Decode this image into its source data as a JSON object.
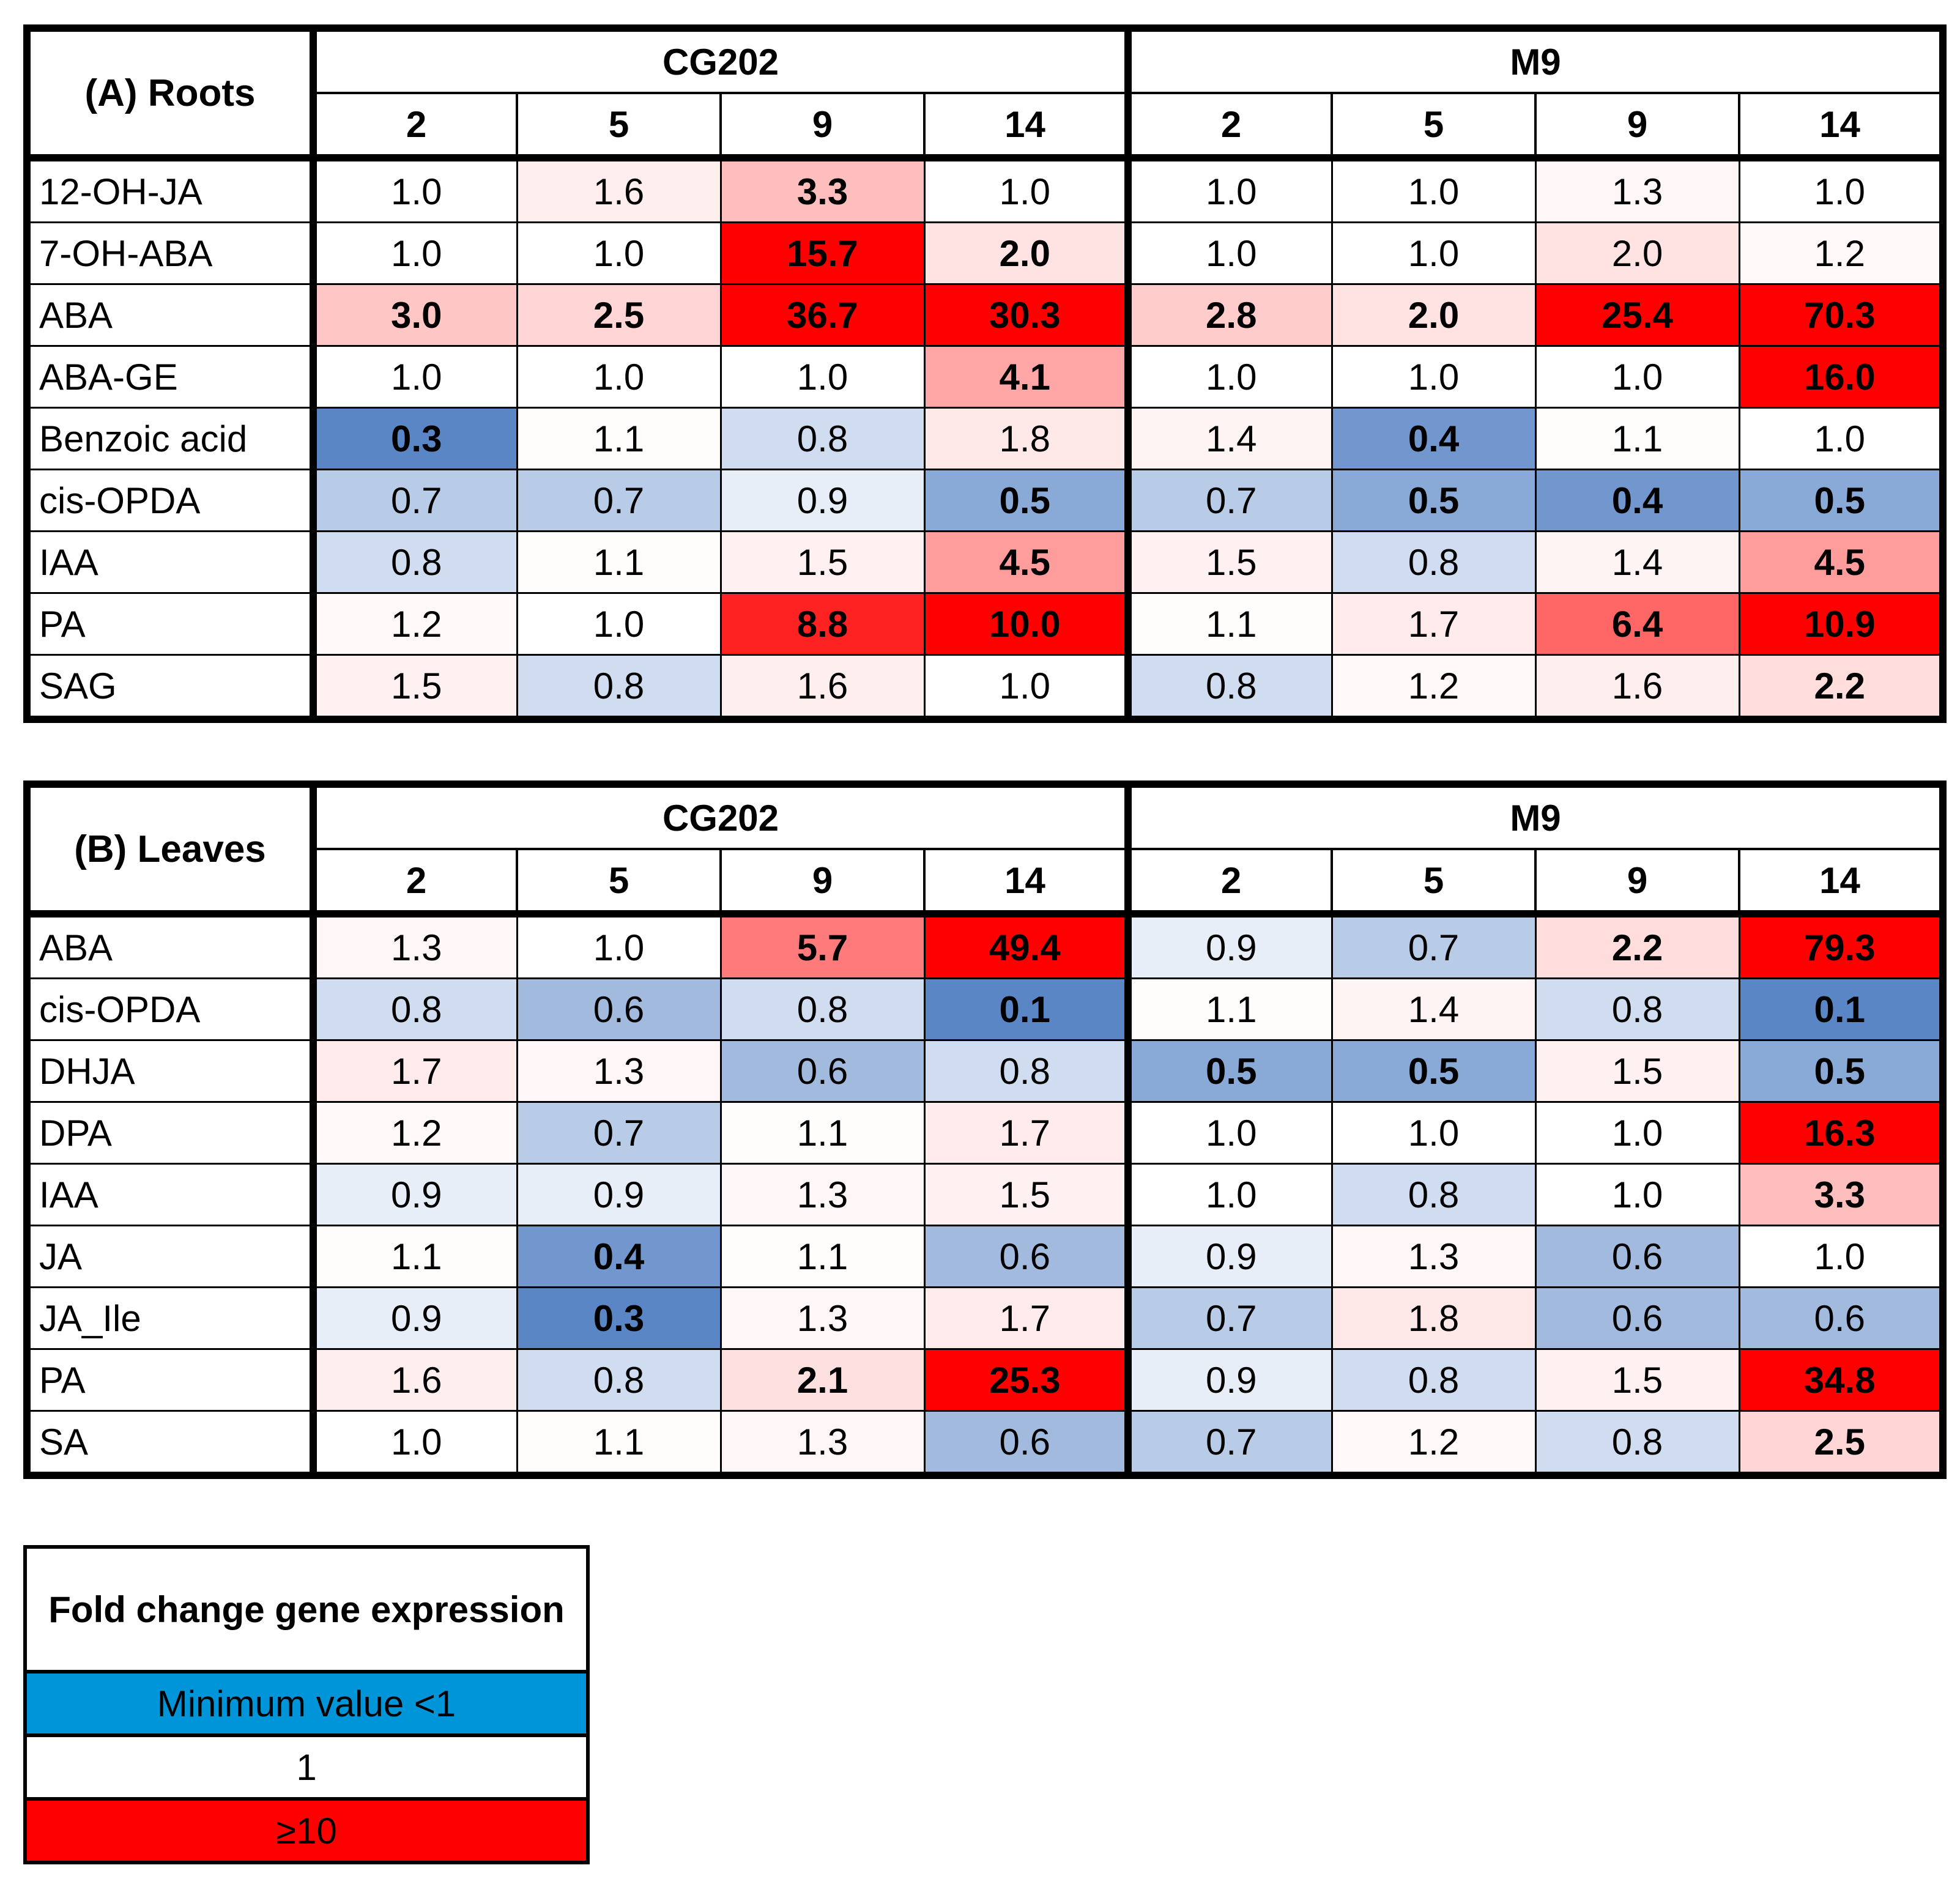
{
  "chart_data": {
    "type": "heatmap",
    "title": "",
    "columns": [
      "2",
      "5",
      "9",
      "14"
    ],
    "groups": [
      "CG202",
      "M9"
    ],
    "color_scale": {
      "min_color": "#5a86c6",
      "mid_color": "#ffffff",
      "max_color": "#ff0000",
      "mid_value": 1,
      "max_value": 10
    },
    "panels": [
      {
        "title": "(A) Roots",
        "rows": [
          {
            "label": "12-OH-JA",
            "cells": [
              [
                "1.0",
                false
              ],
              [
                "1.6",
                false
              ],
              [
                "3.3",
                true
              ],
              [
                "1.0",
                false
              ],
              [
                "1.0",
                false
              ],
              [
                "1.0",
                false
              ],
              [
                "1.3",
                false
              ],
              [
                "1.0",
                false
              ]
            ]
          },
          {
            "label": "7-OH-ABA",
            "cells": [
              [
                "1.0",
                false
              ],
              [
                "1.0",
                false
              ],
              [
                "15.7",
                true
              ],
              [
                "2.0",
                true
              ],
              [
                "1.0",
                false
              ],
              [
                "1.0",
                false
              ],
              [
                "2.0",
                false
              ],
              [
                "1.2",
                false
              ]
            ]
          },
          {
            "label": "ABA",
            "cells": [
              [
                "3.0",
                true
              ],
              [
                "2.5",
                true
              ],
              [
                "36.7",
                true
              ],
              [
                "30.3",
                true
              ],
              [
                "2.8",
                true
              ],
              [
                "2.0",
                true
              ],
              [
                "25.4",
                true
              ],
              [
                "70.3",
                true
              ]
            ]
          },
          {
            "label": "ABA-GE",
            "cells": [
              [
                "1.0",
                false
              ],
              [
                "1.0",
                false
              ],
              [
                "1.0",
                false
              ],
              [
                "4.1",
                true
              ],
              [
                "1.0",
                false
              ],
              [
                "1.0",
                false
              ],
              [
                "1.0",
                false
              ],
              [
                "16.0",
                true
              ]
            ]
          },
          {
            "label": "Benzoic acid",
            "cells": [
              [
                "0.3",
                true
              ],
              [
                "1.1",
                false
              ],
              [
                "0.8",
                false
              ],
              [
                "1.8",
                false
              ],
              [
                "1.4",
                false
              ],
              [
                "0.4",
                true
              ],
              [
                "1.1",
                false
              ],
              [
                "1.0",
                false
              ]
            ]
          },
          {
            "label": "cis-OPDA",
            "cells": [
              [
                "0.7",
                false
              ],
              [
                "0.7",
                false
              ],
              [
                "0.9",
                false
              ],
              [
                "0.5",
                true
              ],
              [
                "0.7",
                false
              ],
              [
                "0.5",
                true
              ],
              [
                "0.4",
                true
              ],
              [
                "0.5",
                true
              ]
            ]
          },
          {
            "label": "IAA",
            "cells": [
              [
                "0.8",
                false
              ],
              [
                "1.1",
                false
              ],
              [
                "1.5",
                false
              ],
              [
                "4.5",
                true
              ],
              [
                "1.5",
                false
              ],
              [
                "0.8",
                false
              ],
              [
                "1.4",
                false
              ],
              [
                "4.5",
                true
              ]
            ]
          },
          {
            "label": "PA",
            "cells": [
              [
                "1.2",
                false
              ],
              [
                "1.0",
                false
              ],
              [
                "8.8",
                true
              ],
              [
                "10.0",
                true
              ],
              [
                "1.1",
                false
              ],
              [
                "1.7",
                false
              ],
              [
                "6.4",
                true
              ],
              [
                "10.9",
                true
              ]
            ]
          },
          {
            "label": "SAG",
            "cells": [
              [
                "1.5",
                false
              ],
              [
                "0.8",
                false
              ],
              [
                "1.6",
                false
              ],
              [
                "1.0",
                false
              ],
              [
                "0.8",
                false
              ],
              [
                "1.2",
                false
              ],
              [
                "1.6",
                false
              ],
              [
                "2.2",
                true
              ]
            ]
          }
        ]
      },
      {
        "title": "(B) Leaves",
        "rows": [
          {
            "label": "ABA",
            "cells": [
              [
                "1.3",
                false
              ],
              [
                "1.0",
                false
              ],
              [
                "5.7",
                true
              ],
              [
                "49.4",
                true
              ],
              [
                "0.9",
                false
              ],
              [
                "0.7",
                false
              ],
              [
                "2.2",
                true
              ],
              [
                "79.3",
                true
              ]
            ]
          },
          {
            "label": "cis-OPDA",
            "cells": [
              [
                "0.8",
                false
              ],
              [
                "0.6",
                false
              ],
              [
                "0.8",
                false
              ],
              [
                "0.1",
                true
              ],
              [
                "1.1",
                false
              ],
              [
                "1.4",
                false
              ],
              [
                "0.8",
                false
              ],
              [
                "0.1",
                true
              ]
            ]
          },
          {
            "label": "DHJA",
            "cells": [
              [
                "1.7",
                false
              ],
              [
                "1.3",
                false
              ],
              [
                "0.6",
                false
              ],
              [
                "0.8",
                false
              ],
              [
                "0.5",
                true
              ],
              [
                "0.5",
                true
              ],
              [
                "1.5",
                false
              ],
              [
                "0.5",
                true
              ]
            ]
          },
          {
            "label": "DPA",
            "cells": [
              [
                "1.2",
                false
              ],
              [
                "0.7",
                false
              ],
              [
                "1.1",
                false
              ],
              [
                "1.7",
                false
              ],
              [
                "1.0",
                false
              ],
              [
                "1.0",
                false
              ],
              [
                "1.0",
                false
              ],
              [
                "16.3",
                true
              ]
            ]
          },
          {
            "label": "IAA",
            "cells": [
              [
                "0.9",
                false
              ],
              [
                "0.9",
                false
              ],
              [
                "1.3",
                false
              ],
              [
                "1.5",
                false
              ],
              [
                "1.0",
                false
              ],
              [
                "0.8",
                false
              ],
              [
                "1.0",
                false
              ],
              [
                "3.3",
                true
              ]
            ]
          },
          {
            "label": "JA",
            "cells": [
              [
                "1.1",
                false
              ],
              [
                "0.4",
                true
              ],
              [
                "1.1",
                false
              ],
              [
                "0.6",
                false
              ],
              [
                "0.9",
                false
              ],
              [
                "1.3",
                false
              ],
              [
                "0.6",
                false
              ],
              [
                "1.0",
                false
              ]
            ]
          },
          {
            "label": "JA_Ile",
            "cells": [
              [
                "0.9",
                false
              ],
              [
                "0.3",
                true
              ],
              [
                "1.3",
                false
              ],
              [
                "1.7",
                false
              ],
              [
                "0.7",
                false
              ],
              [
                "1.8",
                false
              ],
              [
                "0.6",
                false
              ],
              [
                "0.6",
                false
              ]
            ]
          },
          {
            "label": "PA",
            "cells": [
              [
                "1.6",
                false
              ],
              [
                "0.8",
                false
              ],
              [
                "2.1",
                true
              ],
              [
                "25.3",
                true
              ],
              [
                "0.9",
                false
              ],
              [
                "0.8",
                false
              ],
              [
                "1.5",
                false
              ],
              [
                "34.8",
                true
              ]
            ]
          },
          {
            "label": "SA",
            "cells": [
              [
                "1.0",
                false
              ],
              [
                "1.1",
                false
              ],
              [
                "1.3",
                false
              ],
              [
                "0.6",
                false
              ],
              [
                "0.7",
                false
              ],
              [
                "1.2",
                false
              ],
              [
                "0.8",
                false
              ],
              [
                "2.5",
                true
              ]
            ]
          }
        ]
      }
    ],
    "legend": {
      "title": "Fold change gene expression",
      "min_label": "Minimum value <1",
      "mid_label": "1",
      "max_label": "≥10",
      "min_color": "#0095d9",
      "mid_color": "#ffffff",
      "max_color": "#ff0000"
    }
  }
}
